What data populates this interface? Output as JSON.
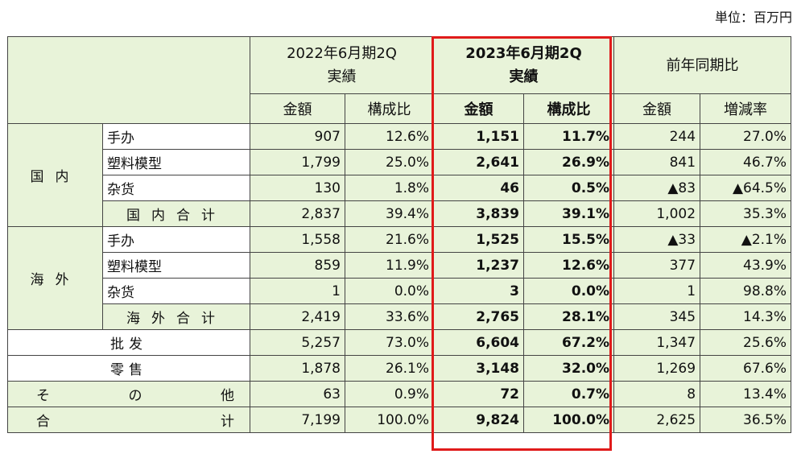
{
  "unit": "単位：百万円",
  "header": {
    "period_prev_line1": "2022年6月期2Q",
    "period_prev_line2": "実績",
    "period_curr_line1": "2023年6月期2Q",
    "period_curr_line2": "実績",
    "yoy": "前年同期比",
    "amount": "金額",
    "ratio": "構成比",
    "change_rate": "増減率"
  },
  "groups": {
    "domestic": "国内",
    "overseas": "海外"
  },
  "rows": [
    {
      "label": "手办",
      "v": [
        "907",
        "12.6%",
        "1,151",
        "11.7%",
        "244",
        "27.0%"
      ]
    },
    {
      "label": "塑料模型",
      "v": [
        "1,799",
        "25.0%",
        "2,641",
        "26.9%",
        "841",
        "46.7%"
      ]
    },
    {
      "label": "杂货",
      "v": [
        "130",
        "1.8%",
        "46",
        "0.5%",
        "▲83",
        "▲64.5%"
      ]
    },
    {
      "label": "国内合计",
      "v": [
        "2,837",
        "39.4%",
        "3,839",
        "39.1%",
        "1,002",
        "35.3%"
      ]
    },
    {
      "label": "手办",
      "v": [
        "1,558",
        "21.6%",
        "1,525",
        "15.5%",
        "▲33",
        "▲2.1%"
      ]
    },
    {
      "label": "塑料模型",
      "v": [
        "859",
        "11.9%",
        "1,237",
        "12.6%",
        "377",
        "43.9%"
      ]
    },
    {
      "label": "杂货",
      "v": [
        "1",
        "0.0%",
        "3",
        "0.0%",
        "1",
        "98.8%"
      ]
    },
    {
      "label": "海外合计",
      "v": [
        "2,419",
        "33.6%",
        "2,765",
        "28.1%",
        "345",
        "14.3%"
      ]
    },
    {
      "label": "批发",
      "v": [
        "5,257",
        "73.0%",
        "6,604",
        "67.2%",
        "1,347",
        "25.6%"
      ]
    },
    {
      "label": "零售",
      "v": [
        "1,878",
        "26.1%",
        "3,148",
        "32.0%",
        "1,269",
        "67.6%"
      ]
    },
    {
      "label": [
        "そ",
        "の",
        "他"
      ],
      "v": [
        "63",
        "0.9%",
        "72",
        "0.7%",
        "8",
        "13.4%"
      ]
    },
    {
      "label": [
        "合",
        "计"
      ],
      "v": [
        "7,199",
        "100.0%",
        "9,824",
        "100.0%",
        "2,625",
        "36.5%"
      ]
    }
  ],
  "colors": {
    "header_bg": "#e8f3d9",
    "highlight": "#e01b1b"
  }
}
